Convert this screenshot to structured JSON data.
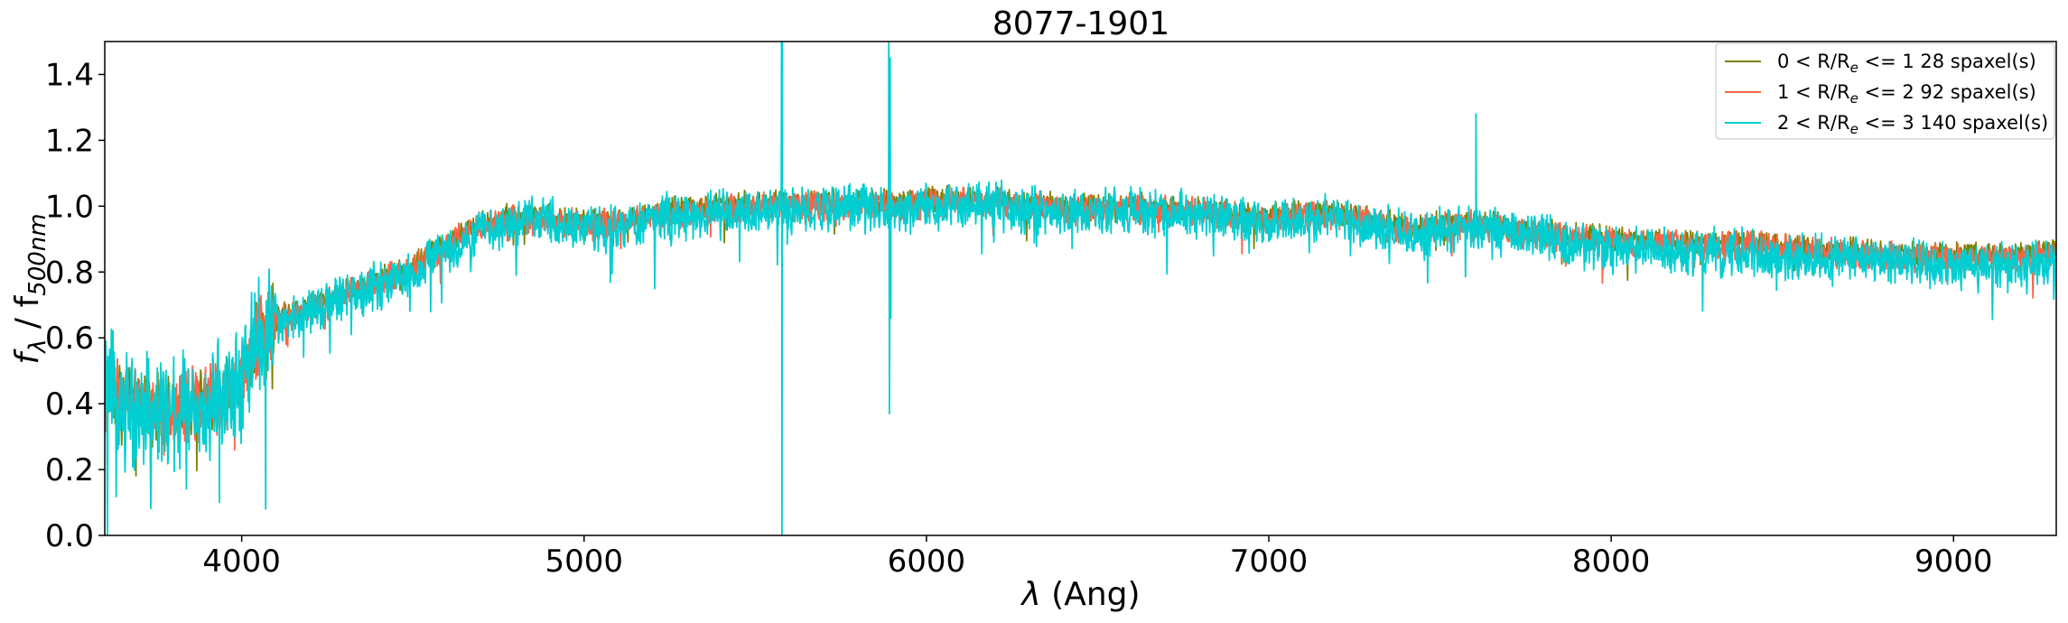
{
  "chart_data": {
    "type": "line",
    "title": "8077-1901",
    "xlabel": "λ (Ang)",
    "ylabel": {
      "main": "f",
      "sub1": "λ",
      "sep": " / f",
      "sub2": "500nm"
    },
    "xlim": [
      3600,
      9300
    ],
    "ylim": [
      0.0,
      1.5
    ],
    "xticks": [
      4000,
      5000,
      6000,
      7000,
      8000,
      9000
    ],
    "yticks": [
      0.0,
      0.2,
      0.4,
      0.6,
      0.8,
      1.0,
      1.2,
      1.4
    ],
    "legend_position": "top-right",
    "grid": false,
    "series": [
      {
        "name": "0 < R/Re <= 1 28 spaxel(s)",
        "name_parts": {
          "prefix": "0 < R/R",
          "sub": "e",
          "suffix": " <= 1 28 spaxel(s)"
        },
        "color": "#808000",
        "noise": 0.03,
        "points": [
          [
            3600,
            0.45
          ],
          [
            3700,
            0.4
          ],
          [
            3800,
            0.38
          ],
          [
            3900,
            0.42
          ],
          [
            3950,
            0.44
          ],
          [
            4000,
            0.47
          ],
          [
            4050,
            0.62
          ],
          [
            4100,
            0.66
          ],
          [
            4200,
            0.7
          ],
          [
            4300,
            0.74
          ],
          [
            4400,
            0.78
          ],
          [
            4500,
            0.82
          ],
          [
            4600,
            0.89
          ],
          [
            4700,
            0.95
          ],
          [
            4800,
            0.97
          ],
          [
            4900,
            0.97
          ],
          [
            5000,
            0.95
          ],
          [
            5100,
            0.96
          ],
          [
            5200,
            0.98
          ],
          [
            5300,
            0.99
          ],
          [
            5400,
            1.0
          ],
          [
            5500,
            1.01
          ],
          [
            5600,
            1.01
          ],
          [
            5700,
            1.01
          ],
          [
            5800,
            1.02
          ],
          [
            5900,
            1.01
          ],
          [
            6000,
            1.02
          ],
          [
            6200,
            1.02
          ],
          [
            6400,
            1.0
          ],
          [
            6600,
            1.0
          ],
          [
            6800,
            0.99
          ],
          [
            7000,
            0.97
          ],
          [
            7200,
            0.98
          ],
          [
            7400,
            0.94
          ],
          [
            7600,
            0.95
          ],
          [
            7800,
            0.92
          ],
          [
            8000,
            0.9
          ],
          [
            8200,
            0.89
          ],
          [
            8400,
            0.89
          ],
          [
            8600,
            0.87
          ],
          [
            8800,
            0.86
          ],
          [
            9000,
            0.85
          ],
          [
            9200,
            0.85
          ],
          [
            9300,
            0.86
          ]
        ]
      },
      {
        "name": "1 < R/Re <= 2 92 spaxel(s)",
        "name_parts": {
          "prefix": "1 < R/R",
          "sub": "e",
          "suffix": " <= 2 92 spaxel(s)"
        },
        "color": "#ff6347",
        "noise": 0.035,
        "points": [
          [
            3600,
            0.44
          ],
          [
            3700,
            0.39
          ],
          [
            3800,
            0.37
          ],
          [
            3900,
            0.42
          ],
          [
            3950,
            0.43
          ],
          [
            4000,
            0.46
          ],
          [
            4050,
            0.61
          ],
          [
            4100,
            0.65
          ],
          [
            4200,
            0.69
          ],
          [
            4300,
            0.73
          ],
          [
            4400,
            0.77
          ],
          [
            4500,
            0.81
          ],
          [
            4600,
            0.88
          ],
          [
            4700,
            0.94
          ],
          [
            4800,
            0.96
          ],
          [
            4900,
            0.96
          ],
          [
            5000,
            0.94
          ],
          [
            5100,
            0.95
          ],
          [
            5200,
            0.97
          ],
          [
            5300,
            0.98
          ],
          [
            5400,
            0.99
          ],
          [
            5500,
            1.0
          ],
          [
            5600,
            1.0
          ],
          [
            5700,
            1.0
          ],
          [
            5800,
            1.01
          ],
          [
            5900,
            1.0
          ],
          [
            6000,
            1.01
          ],
          [
            6200,
            1.01
          ],
          [
            6400,
            0.99
          ],
          [
            6600,
            0.99
          ],
          [
            6800,
            0.98
          ],
          [
            7000,
            0.96
          ],
          [
            7200,
            0.97
          ],
          [
            7400,
            0.93
          ],
          [
            7600,
            0.94
          ],
          [
            7800,
            0.91
          ],
          [
            8000,
            0.89
          ],
          [
            8200,
            0.88
          ],
          [
            8400,
            0.88
          ],
          [
            8600,
            0.86
          ],
          [
            8800,
            0.85
          ],
          [
            9000,
            0.84
          ],
          [
            9200,
            0.84
          ],
          [
            9300,
            0.85
          ]
        ]
      },
      {
        "name": "2 < R/Re <= 3 140 spaxel(s)",
        "name_parts": {
          "prefix": "2 < R/R",
          "sub": "e",
          "suffix": " <= 3 140 spaxel(s)"
        },
        "color": "#00ced1",
        "noise": 0.055,
        "points": [
          [
            3600,
            0.43
          ],
          [
            3700,
            0.38
          ],
          [
            3800,
            0.36
          ],
          [
            3900,
            0.41
          ],
          [
            3950,
            0.42
          ],
          [
            4000,
            0.45
          ],
          [
            4050,
            0.6
          ],
          [
            4100,
            0.64
          ],
          [
            4200,
            0.68
          ],
          [
            4300,
            0.72
          ],
          [
            4400,
            0.76
          ],
          [
            4500,
            0.8
          ],
          [
            4600,
            0.87
          ],
          [
            4700,
            0.93
          ],
          [
            4800,
            0.95
          ],
          [
            4900,
            0.95
          ],
          [
            5000,
            0.93
          ],
          [
            5100,
            0.94
          ],
          [
            5200,
            0.96
          ],
          [
            5300,
            0.97
          ],
          [
            5400,
            0.98
          ],
          [
            5500,
            0.99
          ],
          [
            5600,
            0.99
          ],
          [
            5700,
            0.99
          ],
          [
            5800,
            1.0
          ],
          [
            5900,
            0.99
          ],
          [
            6000,
            1.0
          ],
          [
            6200,
            1.0
          ],
          [
            6400,
            0.98
          ],
          [
            6600,
            0.98
          ],
          [
            6800,
            0.97
          ],
          [
            7000,
            0.95
          ],
          [
            7200,
            0.96
          ],
          [
            7400,
            0.92
          ],
          [
            7600,
            0.94
          ],
          [
            7800,
            0.9
          ],
          [
            8000,
            0.87
          ],
          [
            8200,
            0.86
          ],
          [
            8400,
            0.86
          ],
          [
            8600,
            0.84
          ],
          [
            8800,
            0.83
          ],
          [
            9000,
            0.82
          ],
          [
            9200,
            0.82
          ],
          [
            9300,
            0.83
          ]
        ],
        "features": [
          [
            5577,
            1.55
          ],
          [
            5578,
            0.0
          ],
          [
            5579,
            1.55
          ],
          [
            5890,
            1.55
          ],
          [
            5892,
            0.37
          ],
          [
            5894,
            1.45
          ],
          [
            5896,
            0.66
          ],
          [
            7605,
            1.28
          ],
          [
            3935,
            0.1
          ],
          [
            4070,
            0.08
          ]
        ]
      }
    ]
  }
}
